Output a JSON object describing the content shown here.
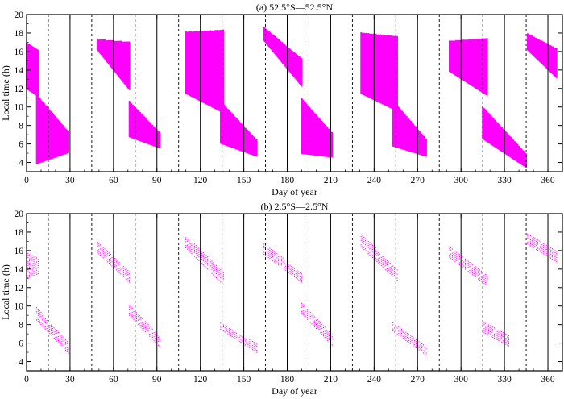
{
  "colors": {
    "data": "#ff00ff",
    "axes": "#000000",
    "background": "#ffffff"
  },
  "chart_data": [
    {
      "type": "scatter",
      "title": "(a) 52.5°S—52.5°N",
      "xlabel": "Day of year",
      "ylabel": "Local time (h)",
      "xlim": [
        0,
        370
      ],
      "ylim": [
        3,
        20
      ],
      "x_ticks": [
        "0",
        "30",
        "60",
        "90",
        "120",
        "150",
        "180",
        "210",
        "240",
        "270",
        "300",
        "330",
        "360"
      ],
      "y_ticks": [
        "4",
        "6",
        "8",
        "10",
        "12",
        "14",
        "16",
        "18",
        "20"
      ],
      "solid_vlines": [
        30,
        60,
        90,
        120,
        150,
        180,
        210,
        240,
        270,
        300,
        330,
        360
      ],
      "dashed_vlines": [
        15,
        45,
        75,
        105,
        135,
        165,
        195,
        225,
        255,
        285,
        315,
        345
      ],
      "regions": [
        {
          "days": [
            0,
            8
          ],
          "lt_start": [
            16.9,
            12.0
          ],
          "lt_end": [
            16.1,
            11.2
          ],
          "density": "dense"
        },
        {
          "days": [
            7,
            29
          ],
          "lt_start": [
            11.3,
            3.9
          ],
          "lt_end": [
            7.3,
            5.1
          ],
          "density": "dense"
        },
        {
          "days": [
            49,
            71
          ],
          "lt_start": [
            17.3,
            16.2
          ],
          "lt_end": [
            17.0,
            11.9
          ],
          "density": "dense"
        },
        {
          "days": [
            71,
            92
          ],
          "lt_start": [
            10.6,
            6.8
          ],
          "lt_end": [
            7.2,
            5.6
          ],
          "density": "dense"
        },
        {
          "days": [
            110,
            136
          ],
          "lt_start": [
            18.1,
            11.5
          ],
          "lt_end": [
            18.3,
            9.4
          ],
          "density": "dense"
        },
        {
          "days": [
            134,
            159
          ],
          "lt_start": [
            10.6,
            6.1
          ],
          "lt_end": [
            6.4,
            4.7
          ],
          "density": "dense"
        },
        {
          "days": [
            164,
            190
          ],
          "lt_start": [
            18.6,
            17.2
          ],
          "lt_end": [
            15.2,
            12.3
          ],
          "density": "dense"
        },
        {
          "days": [
            190,
            211
          ],
          "lt_start": [
            10.9,
            5.0
          ],
          "lt_end": [
            7.2,
            4.6
          ],
          "density": "dense"
        },
        {
          "days": [
            231,
            256
          ],
          "lt_start": [
            18.0,
            11.5
          ],
          "lt_end": [
            17.6,
            9.6
          ],
          "density": "dense"
        },
        {
          "days": [
            253,
            276
          ],
          "lt_start": [
            10.7,
            5.8
          ],
          "lt_end": [
            6.5,
            4.7
          ],
          "density": "dense"
        },
        {
          "days": [
            292,
            318
          ],
          "lt_start": [
            17.1,
            13.9
          ],
          "lt_end": [
            17.4,
            11.3
          ],
          "density": "dense"
        },
        {
          "days": [
            315,
            345
          ],
          "lt_start": [
            10.0,
            6.6
          ],
          "lt_end": [
            4.9,
            3.5
          ],
          "density": "dense"
        },
        {
          "days": [
            346,
            366
          ],
          "lt_start": [
            17.9,
            16.2
          ],
          "lt_end": [
            16.3,
            13.2
          ],
          "density": "dense"
        }
      ]
    },
    {
      "type": "scatter",
      "title": "(b) 2.5°S—2.5°N",
      "xlabel": "Day of year",
      "ylabel": "Local time (h)",
      "xlim": [
        0,
        370
      ],
      "ylim": [
        3,
        20
      ],
      "x_ticks": [
        "0",
        "30",
        "60",
        "90",
        "120",
        "150",
        "180",
        "210",
        "240",
        "270",
        "300",
        "330",
        "360"
      ],
      "y_ticks": [
        "4",
        "6",
        "8",
        "10",
        "12",
        "14",
        "16",
        "18",
        "20"
      ],
      "solid_vlines": [
        30,
        60,
        90,
        120,
        150,
        180,
        210,
        240,
        270,
        300,
        330,
        360
      ],
      "dashed_vlines": [
        15,
        45,
        75,
        105,
        135,
        165,
        195,
        225,
        255,
        285,
        315,
        345
      ],
      "regions": [
        {
          "days": [
            0,
            8
          ],
          "lt_start": [
            15.9,
            13.0
          ],
          "lt_end": [
            15.2,
            13.5
          ],
          "density": "sparse"
        },
        {
          "days": [
            7,
            29
          ],
          "lt_start": [
            9.9,
            8.5
          ],
          "lt_end": [
            6.0,
            4.9
          ],
          "density": "sparse"
        },
        {
          "days": [
            49,
            71
          ],
          "lt_start": [
            16.9,
            15.8
          ],
          "lt_end": [
            13.8,
            12.6
          ],
          "density": "sparse"
        },
        {
          "days": [
            71,
            92
          ],
          "lt_start": [
            10.3,
            9.0
          ],
          "lt_end": [
            6.7,
            5.6
          ],
          "density": "sparse"
        },
        {
          "days": [
            110,
            136
          ],
          "lt_start": [
            17.6,
            16.3
          ],
          "lt_end": [
            13.7,
            12.3
          ],
          "density": "sparse"
        },
        {
          "days": [
            134,
            159
          ],
          "lt_start": [
            8.3,
            7.5
          ],
          "lt_end": [
            5.9,
            5.0
          ],
          "density": "sparse"
        },
        {
          "days": [
            164,
            190
          ],
          "lt_start": [
            16.8,
            15.6
          ],
          "lt_end": [
            13.6,
            12.6
          ],
          "density": "sparse"
        },
        {
          "days": [
            190,
            211
          ],
          "lt_start": [
            10.5,
            9.2
          ],
          "lt_end": [
            6.9,
            5.8
          ],
          "density": "sparse"
        },
        {
          "days": [
            231,
            256
          ],
          "lt_start": [
            17.8,
            16.4
          ],
          "lt_end": [
            14.0,
            12.8
          ],
          "density": "sparse"
        },
        {
          "days": [
            253,
            276
          ],
          "lt_start": [
            8.3,
            7.3
          ],
          "lt_end": [
            5.6,
            4.7
          ],
          "density": "sparse"
        },
        {
          "days": [
            292,
            318
          ],
          "lt_start": [
            16.5,
            15.3
          ],
          "lt_end": [
            13.4,
            12.2
          ],
          "density": "sparse"
        },
        {
          "days": [
            315,
            333
          ],
          "lt_start": [
            8.5,
            7.2
          ],
          "lt_end": [
            6.9,
            5.7
          ],
          "density": "sparse"
        },
        {
          "days": [
            346,
            366
          ],
          "lt_start": [
            17.8,
            16.7
          ],
          "lt_end": [
            16.3,
            14.8
          ],
          "density": "sparse"
        }
      ]
    }
  ]
}
